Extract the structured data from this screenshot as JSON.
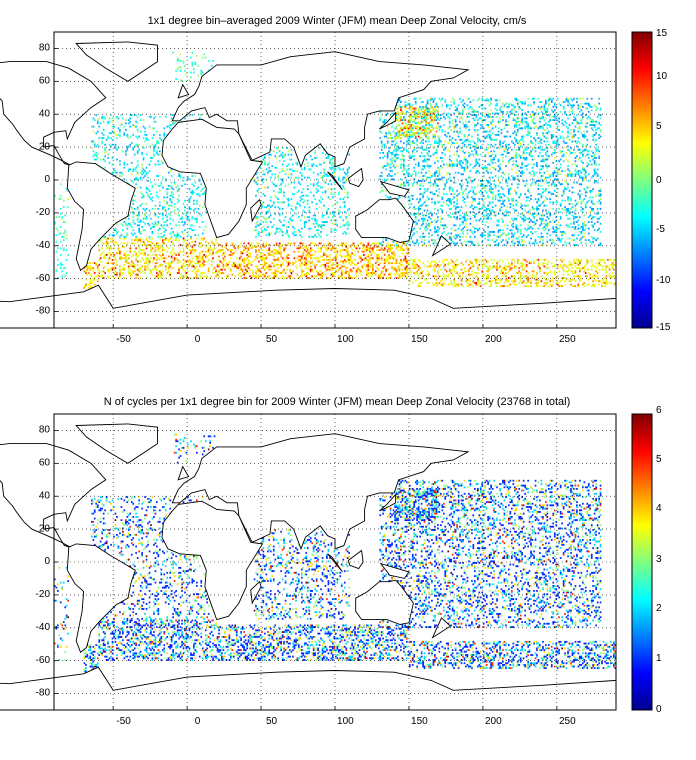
{
  "panels": [
    {
      "title": "1x1 degree bin–averaged 2009 Winter (JFM) mean Deep Zonal Velocity, cm/s",
      "map_xticks": [
        "-50",
        "0",
        "50",
        "100",
        "150",
        "200",
        "250"
      ],
      "map_yticks": [
        "80",
        "60",
        "40",
        "20",
        "0",
        "-20",
        "-40",
        "-60",
        "-80"
      ],
      "colorbar_ticks": [
        "15",
        "10",
        "5",
        "0",
        "-5",
        "-10",
        "-15"
      ]
    },
    {
      "title": "N of cycles per 1x1 degree bin for 2009 Winter (JFM) mean Deep Zonal Velocity (23768 in total)",
      "map_xticks": [
        "-50",
        "0",
        "50",
        "100",
        "150",
        "200",
        "250"
      ],
      "map_yticks": [
        "80",
        "60",
        "40",
        "20",
        "0",
        "-20",
        "-40",
        "-60",
        "-80"
      ],
      "colorbar_ticks": [
        "6",
        "5",
        "4",
        "3",
        "2",
        "1",
        "0"
      ]
    }
  ],
  "chart_data": [
    {
      "type": "heatmap",
      "title": "1x1 degree bin–averaged 2009 Winter (JFM) mean Deep Zonal Velocity, cm/s",
      "xlim": [
        -90,
        290
      ],
      "ylim": [
        -90,
        90
      ],
      "xticks": [
        -50,
        0,
        50,
        100,
        150,
        200,
        250
      ],
      "yticks": [
        80,
        60,
        40,
        20,
        0,
        -20,
        -40,
        -60,
        -80
      ],
      "colorbar": {
        "range": [
          -15,
          15
        ],
        "ticks": [
          15,
          10,
          5,
          0,
          -5,
          -10,
          -15
        ],
        "colormap": "jet"
      },
      "grid": true
    },
    {
      "type": "heatmap",
      "title": "N of cycles per 1x1 degree bin for 2009 Winter (JFM) mean Deep Zonal Velocity (23768 in total)",
      "xlim": [
        -90,
        290
      ],
      "ylim": [
        -90,
        90
      ],
      "xticks": [
        -50,
        0,
        50,
        100,
        150,
        200,
        250
      ],
      "yticks": [
        80,
        60,
        40,
        20,
        0,
        -20,
        -40,
        -60,
        -80
      ],
      "colorbar": {
        "range": [
          0,
          6
        ],
        "ticks": [
          6,
          5,
          4,
          3,
          2,
          1,
          0
        ],
        "colormap": "jet"
      },
      "total_cycles": 23768,
      "grid": true
    }
  ]
}
